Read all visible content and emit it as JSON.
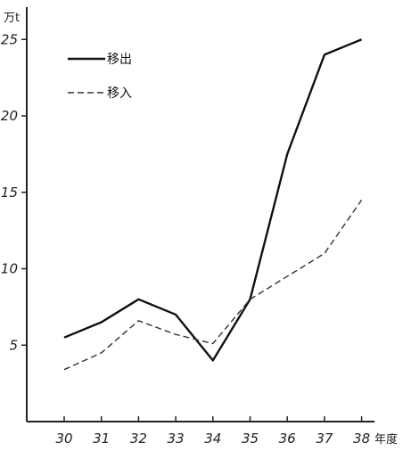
{
  "chart_data": {
    "type": "line",
    "title": "",
    "ylabel": "万t",
    "xlabel": "年度",
    "categories": [
      "30",
      "31",
      "32",
      "33",
      "34",
      "35",
      "36",
      "37",
      "38"
    ],
    "ylim": [
      0,
      26
    ],
    "yticks": [
      5,
      10,
      15,
      20,
      25
    ],
    "grid": false,
    "legend_position": "top-left",
    "series": [
      {
        "name": "移出",
        "style": "solid",
        "color": "#111111",
        "values": [
          5.5,
          6.5,
          8.0,
          7.0,
          4.0,
          8.0,
          17.5,
          24.0,
          25.0
        ]
      },
      {
        "name": "移入",
        "style": "dashed",
        "color": "#333333",
        "values": [
          3.4,
          4.5,
          6.6,
          5.7,
          5.1,
          8.0,
          9.5,
          11.0,
          14.5
        ]
      }
    ]
  }
}
